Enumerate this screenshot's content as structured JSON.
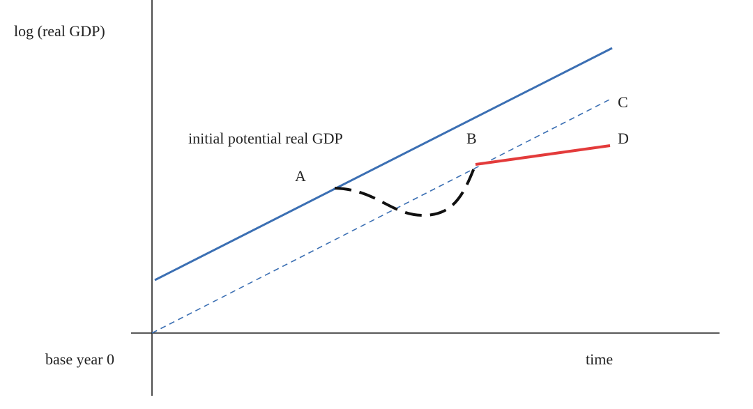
{
  "labels": {
    "y_axis": "log (real GDP)",
    "x_axis": "time",
    "origin": "base year 0",
    "curve_label": "initial potential real GDP",
    "point_a": "A",
    "point_b": "B",
    "point_c": "C",
    "point_d": "D"
  },
  "colors": {
    "axis": "#222222",
    "potential_line": "#3b6fb3",
    "path_line": "#111111",
    "new_path": "#e33b3b",
    "text": "#222222"
  }
}
